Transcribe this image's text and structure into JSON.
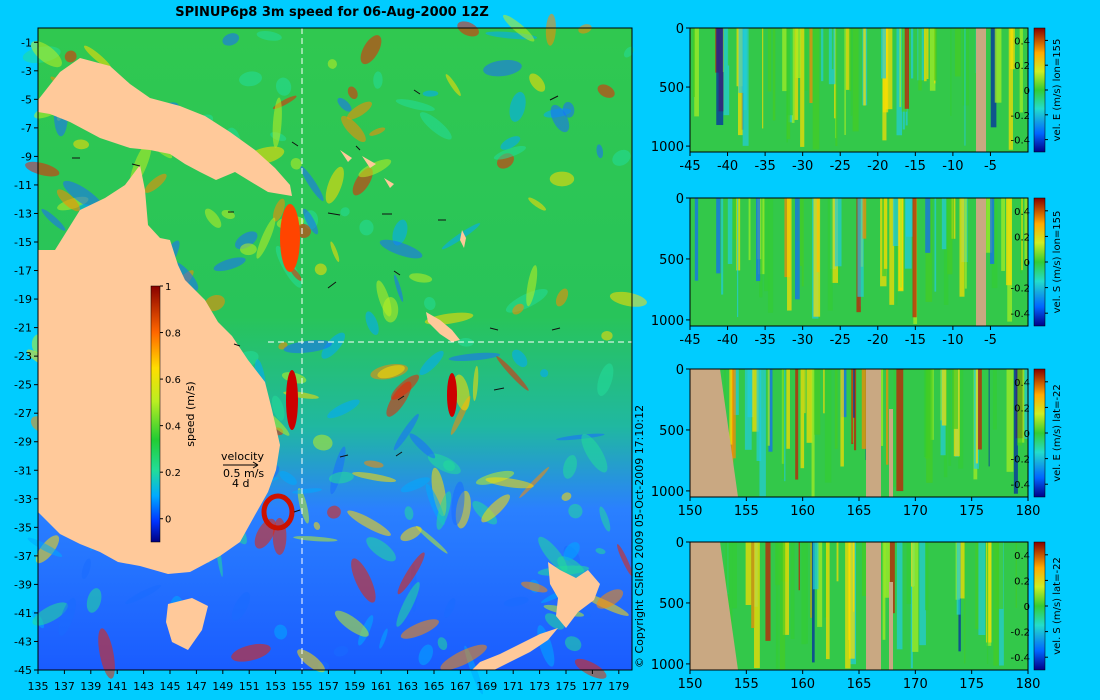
{
  "map": {
    "title": "SPINUP6p8 3m speed for 06-Aug-2000 12Z",
    "lat_ticks": [
      "-1",
      "-3",
      "-5",
      "-7",
      "-9",
      "-11",
      "-13",
      "-15",
      "-17",
      "-19",
      "-21",
      "-23",
      "-25",
      "-27",
      "-29",
      "-31",
      "-33",
      "-35",
      "-37",
      "-39",
      "-41",
      "-43",
      "-45"
    ],
    "lon_ticks": [
      "135",
      "137",
      "139",
      "141",
      "143",
      "145",
      "147",
      "149",
      "151",
      "153",
      "155",
      "157",
      "159",
      "161",
      "163",
      "165",
      "167",
      "169",
      "171",
      "173",
      "175",
      "177",
      "179"
    ],
    "colorbar": {
      "label": "speed (m/s)",
      "ticks": [
        "1",
        "0.8",
        "0.6",
        "0.4",
        "0.2",
        "0"
      ],
      "range": [
        -0.1,
        1.0
      ]
    },
    "velocity_key": {
      "label": "velocity",
      "scale": "0.5 m/s",
      "days": "4 d"
    },
    "section_lon": 155,
    "section_lat": -22,
    "colors": {
      "land": "#ffc99a",
      "ocean_low": "#1a5cff",
      "ocean_mid": "#19c860",
      "ocean_high": "#ff3300"
    }
  },
  "copyright": "© Copyright CSIRO 2009   05-Oct-2009 17:10:12",
  "panels": [
    {
      "cbar_label": "vel. E (m/s) lon=155",
      "x_ticks": [
        "-45",
        "-40",
        "-35",
        "-30",
        "-25",
        "-20",
        "-15",
        "-10",
        "-5"
      ]
    },
    {
      "cbar_label": "vel. S (m/s) lon=155",
      "x_ticks": [
        "-45",
        "-40",
        "-35",
        "-30",
        "-25",
        "-20",
        "-15",
        "-10",
        "-5"
      ]
    },
    {
      "cbar_label": "vel. E (m/s) lat=-22",
      "x_ticks": [
        "150",
        "155",
        "160",
        "165",
        "170",
        "175",
        "180"
      ]
    },
    {
      "cbar_label": "vel. S (m/s) lat=-22",
      "x_ticks": [
        "150",
        "155",
        "160",
        "165",
        "170",
        "175",
        "180"
      ]
    }
  ],
  "panel_y_ticks": [
    "0",
    "500",
    "1000"
  ],
  "panel_cbar_ticks": [
    "0.4",
    "0.2",
    "0",
    "-0.2",
    "-0.4"
  ],
  "chart_data": [
    {
      "type": "heatmap",
      "title": "SPINUP6p8 3m speed for 06-Aug-2000 12Z",
      "x_range": [
        135,
        180
      ],
      "y_range": [
        -45,
        0
      ],
      "color_label": "speed (m/s)",
      "color_range": [
        0,
        1
      ]
    },
    {
      "type": "heatmap",
      "x_range": [
        -45,
        0
      ],
      "y_range": [
        0,
        1050
      ],
      "color_label": "vel. E (m/s) lon=155",
      "color_range": [
        -0.4,
        0.4
      ]
    },
    {
      "type": "heatmap",
      "x_range": [
        -45,
        0
      ],
      "y_range": [
        0,
        1050
      ],
      "color_label": "vel. S (m/s) lon=155",
      "color_range": [
        -0.4,
        0.4
      ]
    },
    {
      "type": "heatmap",
      "x_range": [
        150,
        180
      ],
      "y_range": [
        0,
        1050
      ],
      "color_label": "vel. E (m/s) lat=-22",
      "color_range": [
        -0.4,
        0.4
      ]
    },
    {
      "type": "heatmap",
      "x_range": [
        150,
        180
      ],
      "y_range": [
        0,
        1050
      ],
      "color_label": "vel. S (m/s) lat=-22",
      "color_range": [
        -0.4,
        0.4
      ]
    }
  ]
}
